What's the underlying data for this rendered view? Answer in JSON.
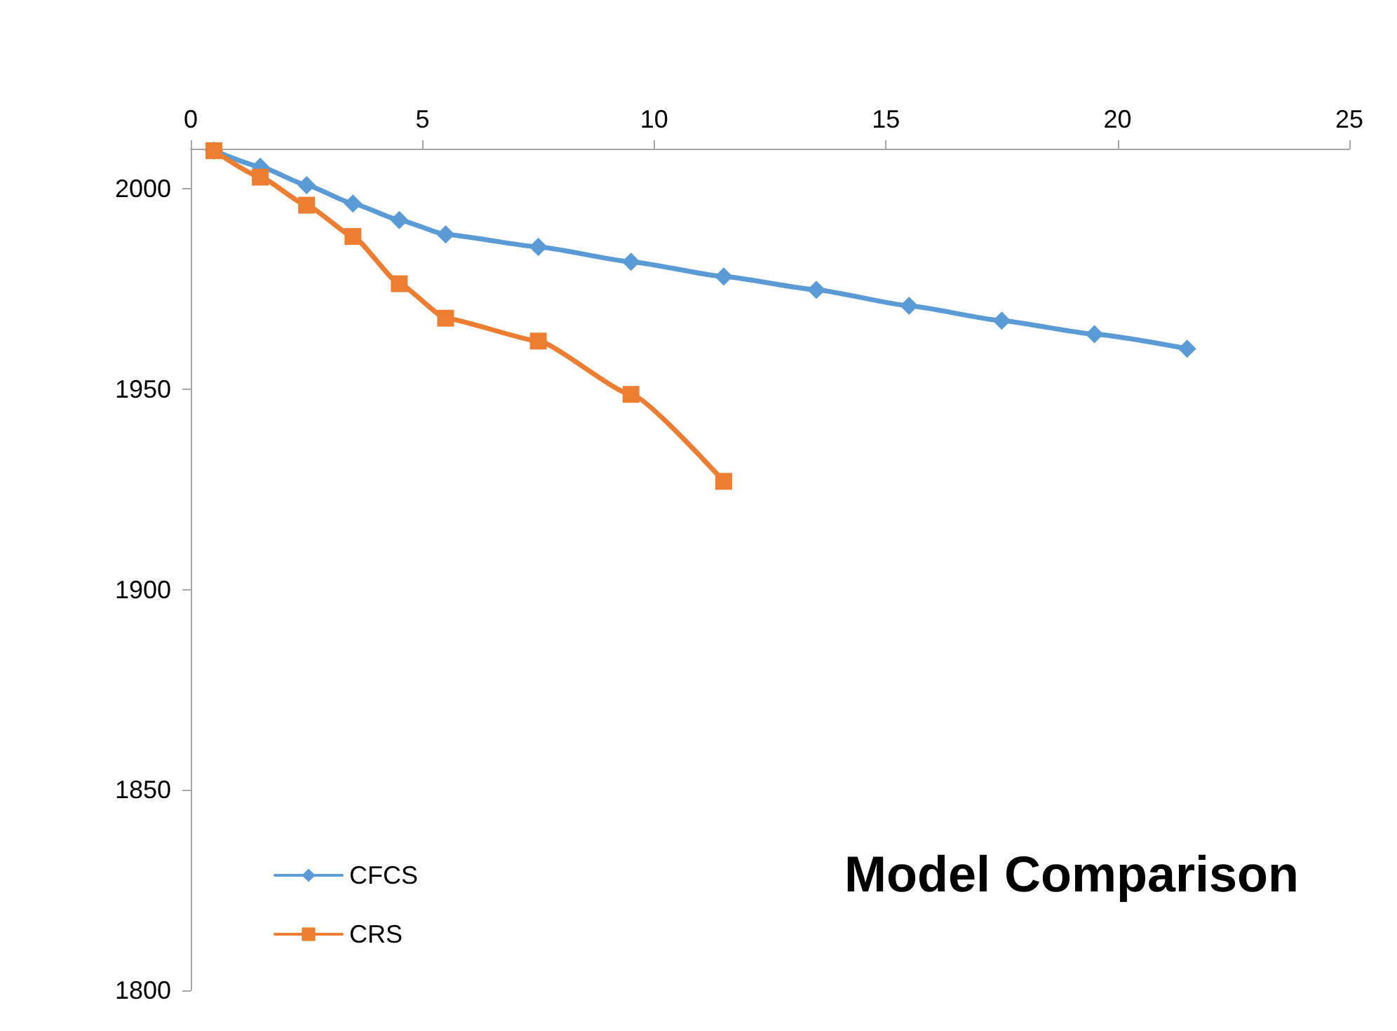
{
  "chart_data": {
    "type": "line",
    "title": "Model Comparison",
    "x": [
      0.5,
      1.5,
      2.5,
      3.5,
      4.5,
      5.5,
      7.5,
      9.5,
      11.5,
      13.5,
      15.5,
      17.5,
      19.5,
      21.5
    ],
    "series": [
      {
        "name": "CFCS",
        "color": "#5b9bd5",
        "marker": "diamond",
        "values": [
          2009.5,
          2005.5,
          2000.9,
          1996.3,
          1992.2,
          1988.6,
          1985.5,
          1981.8,
          1978.1,
          1974.8,
          1970.8,
          1967.1,
          1963.7,
          1960.1
        ]
      },
      {
        "name": "CRS",
        "color": "#ed7d31",
        "marker": "square",
        "x": [
          0.5,
          1.5,
          2.5,
          3.5,
          4.5,
          5.5,
          7.5,
          9.5,
          11.5
        ],
        "values": [
          2009.5,
          2002.9,
          1995.9,
          1988.1,
          1976.3,
          1967.7,
          1962,
          1948.7,
          1927
        ]
      }
    ],
    "xlim": [
      0,
      25
    ],
    "xticks": [
      0,
      5,
      10,
      15,
      20,
      25
    ],
    "ylim": [
      1800,
      2010
    ],
    "yticks": [
      1800,
      1850,
      1900,
      1950,
      2000
    ],
    "grid": false,
    "legend": "bottom left"
  }
}
